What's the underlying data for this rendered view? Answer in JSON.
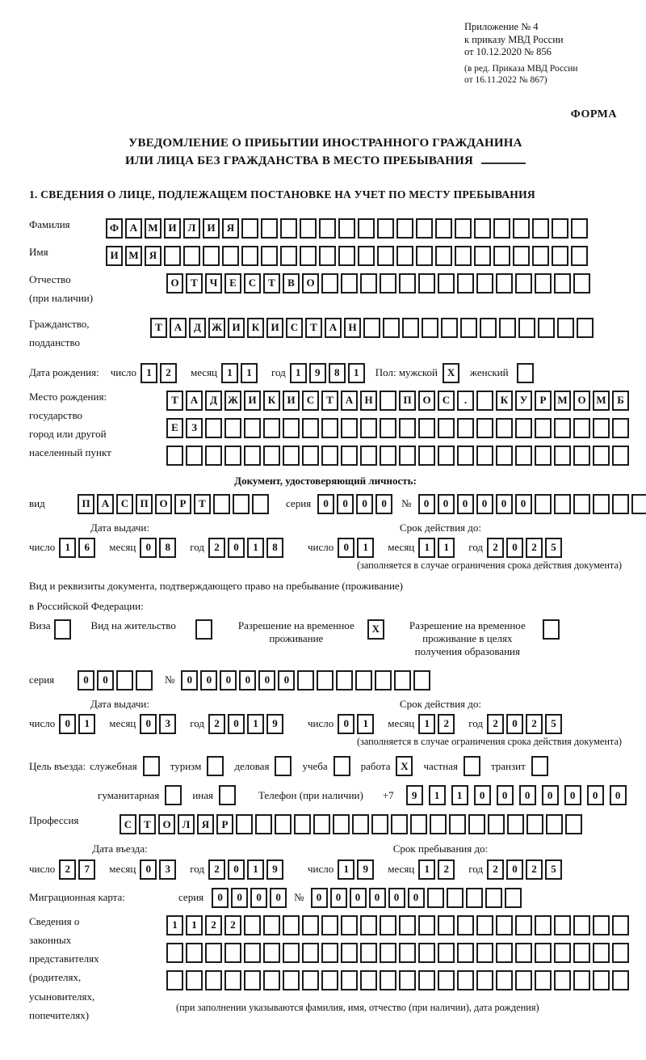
{
  "header": {
    "line1": "Приложение № 4",
    "line2": "к приказу МВД России",
    "line3": "от 10.12.2020 № 856",
    "line4": "(в ред. Приказа МВД России",
    "line5": "от 16.11.2022 № 867)",
    "form": "ФОРМА"
  },
  "title": {
    "line1": "УВЕДОМЛЕНИЕ О ПРИБЫТИИ ИНОСТРАННОГО ГРАЖДАНИНА",
    "line2": "ИЛИ ЛИЦА БЕЗ ГРАЖДАНСТВА В МЕСТО ПРЕБЫВАНИЯ"
  },
  "section1_heading": "1. СВЕДЕНИЯ О ЛИЦЕ, ПОДЛЕЖАЩЕМ ПОСТАНОВКЕ НА УЧЕТ ПО МЕСТУ ПРЕБЫВАНИЯ",
  "date_labels": {
    "day": "число",
    "month": "месяц",
    "year": "год"
  },
  "doc_note": "(заполняется в случае ограничения срока действия документа)",
  "fields": {
    "surname": {
      "label": "Фамилия",
      "cells": {
        "v": "ФАМИЛИЯ",
        "n": 25
      }
    },
    "firstname": {
      "label": "Имя",
      "cells": {
        "v": "ИМЯ",
        "n": 25
      }
    },
    "patronymic": {
      "label1": "Отчество",
      "label2": "(при наличии)",
      "cells": {
        "v": "ОТЧЕСТВО",
        "n": 22
      }
    },
    "citizenship": {
      "label1": "Гражданство,",
      "label2": "подданство",
      "cells": {
        "v": "ТАДЖИКИСТАН",
        "n": 23
      }
    },
    "birth_date": {
      "label": "Дата рождения:",
      "day": {
        "v": "12",
        "n": 2
      },
      "month": {
        "v": "11",
        "n": 2
      },
      "year": {
        "v": "1981",
        "n": 4
      },
      "sex_label": "Пол: мужской",
      "male_checked": "X",
      "female_label": "женский",
      "female_checked": ""
    },
    "birth_place": {
      "labels": [
        "Место рождения:",
        "государство",
        "город или другой",
        "населенный пункт"
      ],
      "row1": {
        "v": "ТАДЖИКИСТАН ПОС. КУРМОМБ",
        "n": 24
      },
      "row2": {
        "v": "ЕЗ",
        "n": 24
      },
      "row3": {
        "v": "",
        "n": 24
      }
    }
  },
  "identity_doc": {
    "heading": "Документ, удостоверяющий личность:",
    "type_label": "вид",
    "type": {
      "v": "ПАСПОРТ",
      "n": 10
    },
    "series_label": "серия",
    "series": {
      "v": "0000",
      "n": 4
    },
    "number_label": "№",
    "number": {
      "v": "000000",
      "n": 12
    },
    "issue_heading": "Дата выдачи:",
    "issue": {
      "day": {
        "v": "16",
        "n": 2
      },
      "month": {
        "v": "08",
        "n": 2
      },
      "year": {
        "v": "2018",
        "n": 4
      }
    },
    "expiry_heading": "Срок действия до:",
    "expiry": {
      "day": {
        "v": "01",
        "n": 2
      },
      "month": {
        "v": "11",
        "n": 2
      },
      "year": {
        "v": "2025",
        "n": 4
      }
    }
  },
  "residence_doc": {
    "intro1": "Вид и реквизиты документа, подтверждающего право на пребывание (проживание)",
    "intro2": "в Российской Федерации:",
    "options": [
      {
        "label": "Виза",
        "checked": ""
      },
      {
        "label": "Вид на жительство",
        "checked": ""
      },
      {
        "label": "Разрешение на временное проживание",
        "checked": "X"
      },
      {
        "label": "Разрешение на временное проживание в целях получения образования",
        "checked": ""
      }
    ],
    "series_label": "серия",
    "series": {
      "v": "00",
      "n": 4
    },
    "number_label": "№",
    "number": {
      "v": "000000",
      "n": 13
    },
    "issue_heading": "Дата выдачи:",
    "issue": {
      "day": {
        "v": "01",
        "n": 2
      },
      "month": {
        "v": "03",
        "n": 2
      },
      "year": {
        "v": "2019",
        "n": 4
      }
    },
    "expiry_heading": "Срок действия до:",
    "expiry": {
      "day": {
        "v": "01",
        "n": 2
      },
      "month": {
        "v": "12",
        "n": 2
      },
      "year": {
        "v": "2025",
        "n": 4
      }
    }
  },
  "visit": {
    "purpose_label": "Цель въезда:",
    "options_line1": [
      {
        "label": "служебная",
        "checked": ""
      },
      {
        "label": "туризм",
        "checked": ""
      },
      {
        "label": "деловая",
        "checked": ""
      },
      {
        "label": "учеба",
        "checked": ""
      },
      {
        "label": "работа",
        "checked": "X"
      },
      {
        "label": "частная",
        "checked": ""
      },
      {
        "label": "транзит",
        "checked": ""
      }
    ],
    "options_line2": [
      {
        "label": "гуманитарная",
        "checked": ""
      },
      {
        "label": "иная",
        "checked": ""
      }
    ],
    "phone_label": "Телефон (при наличии)",
    "phone_prefix": "+7",
    "phone": {
      "v": "9110000000",
      "n": 10
    }
  },
  "profession": {
    "label": "Профессия",
    "cells": {
      "v": "СТОЛЯР",
      "n": 24
    }
  },
  "entry_dates": {
    "entry_heading": "Дата въезда:",
    "entry": {
      "day": {
        "v": "27",
        "n": 2
      },
      "month": {
        "v": "03",
        "n": 2
      },
      "year": {
        "v": "2019",
        "n": 4
      }
    },
    "stay_heading": "Срок пребывания до:",
    "stay": {
      "day": {
        "v": "19",
        "n": 2
      },
      "month": {
        "v": "12",
        "n": 2
      },
      "year": {
        "v": "2025",
        "n": 4
      }
    }
  },
  "migration_card": {
    "label": "Миграционная карта:",
    "series_label": "серия",
    "series": {
      "v": "0000",
      "n": 4
    },
    "number_label": "№",
    "number": {
      "v": "000000",
      "n": 11
    }
  },
  "representatives": {
    "labels": [
      "Сведения о",
      "законных",
      "представителях",
      "(родителях,",
      "усыновителях,",
      "попечителях)"
    ],
    "row1": {
      "v": "1122",
      "n": 24
    },
    "row2": {
      "v": "",
      "n": 24
    },
    "row3": {
      "v": "",
      "n": 24
    },
    "note": "(при заполнении указываются фамилия, имя, отчество (при наличии), дата рождения)"
  }
}
